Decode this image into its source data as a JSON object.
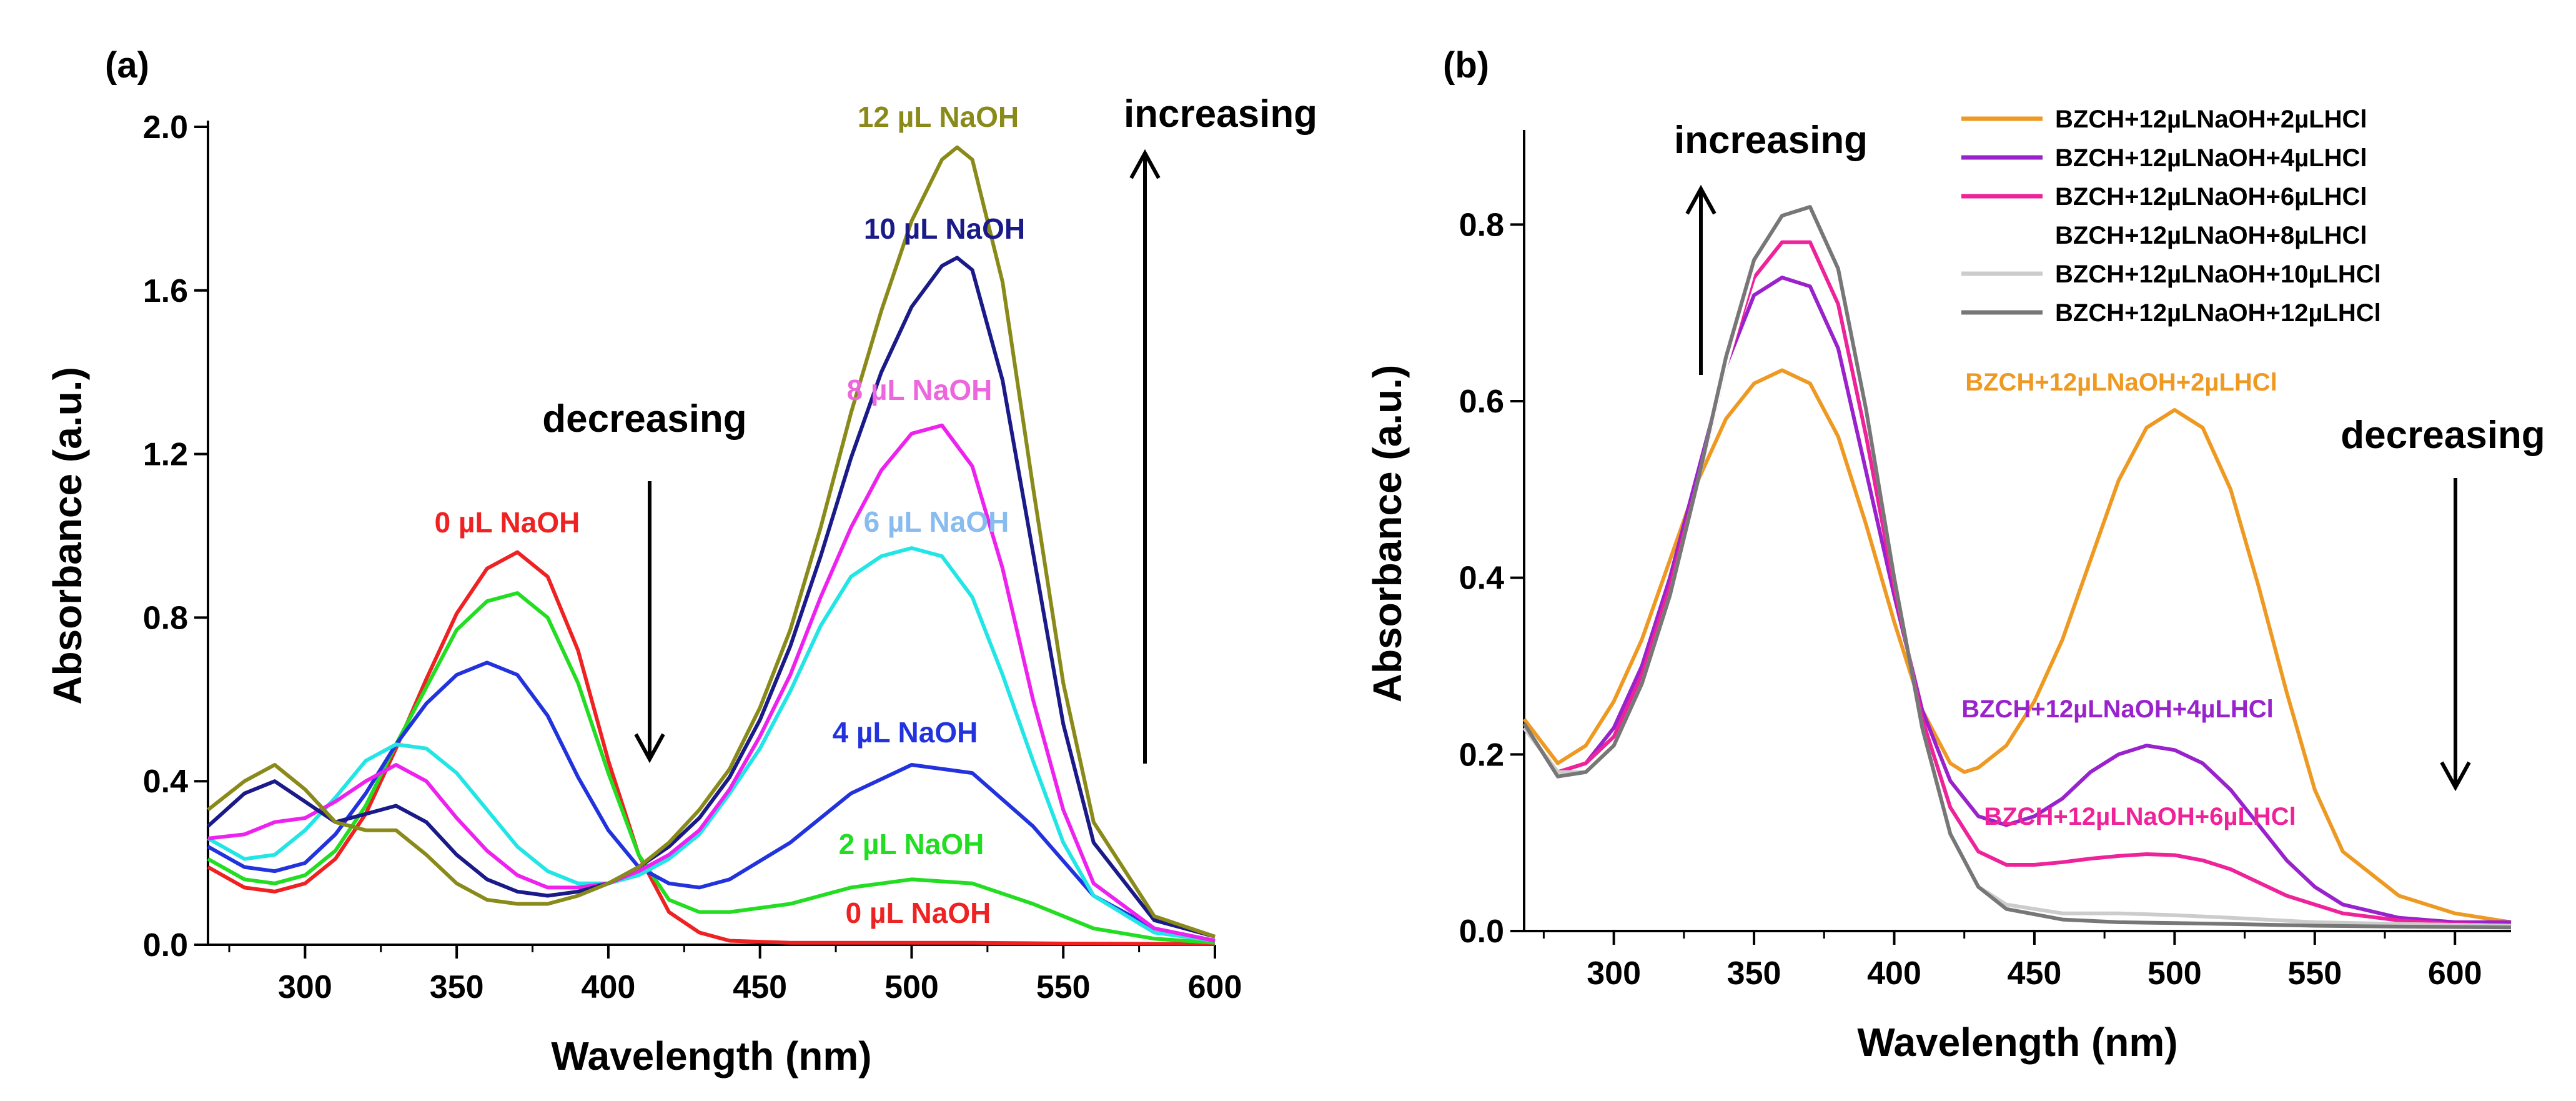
{
  "chart_data": [
    {
      "type": "line",
      "panel_label": "(a)",
      "xlabel": "Wavelength (nm)",
      "ylabel": "Absorbance (a.u.)",
      "xlim": [
        268,
        600
      ],
      "ylim": [
        0,
        2.0
      ],
      "xticks": [
        300,
        350,
        400,
        450,
        500,
        550,
        600
      ],
      "yticks": [
        0.0,
        0.4,
        0.8,
        1.2,
        1.6,
        2.0
      ],
      "ytick_labels": [
        "0.0",
        "0.4",
        "0.8",
        "1.2",
        "1.6",
        "2.0"
      ],
      "series": [
        {
          "name": "0 µL NaOH",
          "color": "#ee2222",
          "x": [
            268,
            280,
            290,
            300,
            310,
            320,
            330,
            340,
            350,
            360,
            370,
            380,
            390,
            400,
            410,
            420,
            430,
            440,
            460,
            480,
            500,
            520,
            550,
            600
          ],
          "y": [
            0.19,
            0.14,
            0.13,
            0.15,
            0.21,
            0.32,
            0.48,
            0.65,
            0.81,
            0.92,
            0.96,
            0.9,
            0.72,
            0.45,
            0.22,
            0.08,
            0.03,
            0.01,
            0.005,
            0.005,
            0.005,
            0.005,
            0.003,
            0.002
          ]
        },
        {
          "name": "2 µL NaOH",
          "color": "#22dd22",
          "x": [
            268,
            280,
            290,
            300,
            310,
            320,
            330,
            340,
            350,
            360,
            370,
            380,
            390,
            400,
            410,
            420,
            430,
            440,
            460,
            480,
            500,
            520,
            540,
            560,
            580,
            600
          ],
          "y": [
            0.21,
            0.16,
            0.15,
            0.17,
            0.23,
            0.34,
            0.49,
            0.63,
            0.77,
            0.84,
            0.86,
            0.8,
            0.64,
            0.42,
            0.22,
            0.11,
            0.08,
            0.08,
            0.1,
            0.14,
            0.16,
            0.15,
            0.1,
            0.04,
            0.015,
            0.005
          ]
        },
        {
          "name": "4 µL NaOH",
          "color": "#2233dd",
          "x": [
            268,
            280,
            290,
            300,
            310,
            320,
            330,
            340,
            350,
            360,
            370,
            380,
            390,
            400,
            410,
            420,
            430,
            440,
            460,
            480,
            500,
            520,
            540,
            560,
            580,
            600
          ],
          "y": [
            0.24,
            0.19,
            0.18,
            0.2,
            0.27,
            0.37,
            0.49,
            0.59,
            0.66,
            0.69,
            0.66,
            0.56,
            0.41,
            0.28,
            0.19,
            0.15,
            0.14,
            0.16,
            0.25,
            0.37,
            0.44,
            0.42,
            0.29,
            0.12,
            0.04,
            0.01
          ]
        },
        {
          "name": "6 µL NaOH",
          "color": "#22e5e5",
          "x": [
            268,
            280,
            290,
            300,
            310,
            320,
            330,
            340,
            350,
            360,
            370,
            380,
            390,
            400,
            410,
            420,
            430,
            440,
            450,
            460,
            470,
            480,
            490,
            500,
            510,
            520,
            530,
            540,
            550,
            560,
            580,
            600
          ],
          "y": [
            0.26,
            0.21,
            0.22,
            0.28,
            0.36,
            0.45,
            0.49,
            0.48,
            0.42,
            0.33,
            0.24,
            0.18,
            0.15,
            0.15,
            0.17,
            0.21,
            0.27,
            0.37,
            0.48,
            0.62,
            0.78,
            0.9,
            0.95,
            0.97,
            0.95,
            0.85,
            0.66,
            0.45,
            0.25,
            0.12,
            0.03,
            0.01
          ]
        },
        {
          "name": "8 µL NaOH",
          "color": "#ee22ee",
          "x": [
            268,
            280,
            290,
            300,
            310,
            320,
            330,
            340,
            350,
            360,
            370,
            380,
            390,
            400,
            410,
            420,
            430,
            440,
            450,
            460,
            470,
            480,
            490,
            500,
            510,
            520,
            530,
            540,
            550,
            560,
            580,
            600
          ],
          "y": [
            0.26,
            0.27,
            0.3,
            0.31,
            0.35,
            0.4,
            0.44,
            0.4,
            0.31,
            0.23,
            0.17,
            0.14,
            0.14,
            0.15,
            0.18,
            0.22,
            0.28,
            0.38,
            0.51,
            0.66,
            0.85,
            1.02,
            1.16,
            1.25,
            1.27,
            1.17,
            0.92,
            0.6,
            0.33,
            0.15,
            0.04,
            0.01
          ]
        },
        {
          "name": "10 µL NaOH",
          "color": "#1a1a88",
          "x": [
            268,
            280,
            290,
            300,
            310,
            320,
            330,
            340,
            350,
            360,
            370,
            380,
            390,
            400,
            410,
            420,
            430,
            440,
            450,
            460,
            470,
            480,
            490,
            500,
            510,
            515,
            520,
            530,
            540,
            550,
            560,
            580,
            600
          ],
          "y": [
            0.29,
            0.37,
            0.4,
            0.35,
            0.3,
            0.32,
            0.34,
            0.3,
            0.22,
            0.16,
            0.13,
            0.12,
            0.13,
            0.15,
            0.19,
            0.24,
            0.31,
            0.41,
            0.55,
            0.73,
            0.95,
            1.19,
            1.4,
            1.56,
            1.66,
            1.68,
            1.65,
            1.38,
            0.96,
            0.54,
            0.25,
            0.06,
            0.02
          ]
        },
        {
          "name": "12 µL NaOH",
          "color": "#8a8a1a",
          "x": [
            268,
            280,
            290,
            300,
            310,
            320,
            330,
            340,
            350,
            360,
            370,
            380,
            390,
            400,
            410,
            420,
            430,
            440,
            450,
            460,
            470,
            480,
            490,
            500,
            510,
            515,
            520,
            530,
            540,
            550,
            560,
            580,
            600
          ],
          "y": [
            0.33,
            0.4,
            0.44,
            0.38,
            0.3,
            0.28,
            0.28,
            0.22,
            0.15,
            0.11,
            0.1,
            0.1,
            0.12,
            0.15,
            0.19,
            0.25,
            0.33,
            0.43,
            0.58,
            0.77,
            1.02,
            1.3,
            1.55,
            1.77,
            1.92,
            1.95,
            1.92,
            1.62,
            1.12,
            0.64,
            0.3,
            0.07,
            0.02
          ]
        }
      ],
      "annotations": [
        {
          "text": "12 µL NaOH",
          "color": "#8a8a1a"
        },
        {
          "text": "10 µL NaOH",
          "color": "#1a1a88"
        },
        {
          "text": "8 µL NaOH",
          "color": "#ee66dd"
        },
        {
          "text": "6 µL NaOH",
          "color": "#88bbee"
        },
        {
          "text": "4 µL NaOH",
          "color": "#2233dd"
        },
        {
          "text": "2 µL NaOH",
          "color": "#22dd22"
        },
        {
          "text": "0 µL NaOH",
          "color": "#ee2222"
        },
        {
          "text": "0 µL NaOH",
          "color": "#ee2222"
        },
        {
          "text": "decreasing",
          "color": "#000000"
        },
        {
          "text": "increasing",
          "color": "#000000"
        }
      ]
    },
    {
      "type": "line",
      "panel_label": "(b)",
      "xlabel": "Wavelength (nm)",
      "ylabel": "Absorbance (a.u.)",
      "xlim": [
        268,
        620
      ],
      "ylim": [
        0,
        0.9
      ],
      "xticks": [
        300,
        350,
        400,
        450,
        500,
        550,
        600
      ],
      "yticks": [
        0.0,
        0.2,
        0.4,
        0.6,
        0.8
      ],
      "ytick_labels": [
        "0.0",
        "0.2",
        "0.4",
        "0.6",
        "0.8"
      ],
      "series": [
        {
          "name": "BZCH+12µLNaOH+2µLHCl",
          "color": "#ee9922",
          "x": [
            268,
            280,
            290,
            300,
            310,
            320,
            330,
            340,
            350,
            360,
            370,
            380,
            390,
            400,
            410,
            420,
            425,
            430,
            440,
            450,
            460,
            470,
            480,
            490,
            500,
            510,
            520,
            530,
            540,
            550,
            560,
            580,
            600,
            620
          ],
          "y": [
            0.24,
            0.19,
            0.21,
            0.26,
            0.33,
            0.42,
            0.51,
            0.58,
            0.62,
            0.635,
            0.62,
            0.56,
            0.46,
            0.35,
            0.25,
            0.19,
            0.18,
            0.185,
            0.21,
            0.26,
            0.33,
            0.42,
            0.51,
            0.57,
            0.59,
            0.57,
            0.5,
            0.39,
            0.27,
            0.16,
            0.09,
            0.04,
            0.02,
            0.01
          ]
        },
        {
          "name": "BZCH+12µLNaOH+4µLHCl",
          "color": "#9922cc",
          "x": [
            268,
            280,
            290,
            300,
            310,
            320,
            330,
            340,
            350,
            360,
            370,
            380,
            390,
            400,
            410,
            420,
            430,
            440,
            450,
            460,
            470,
            480,
            490,
            500,
            510,
            520,
            530,
            540,
            550,
            560,
            580,
            600,
            620
          ],
          "y": [
            0.23,
            0.18,
            0.19,
            0.23,
            0.3,
            0.4,
            0.52,
            0.64,
            0.72,
            0.74,
            0.73,
            0.66,
            0.52,
            0.38,
            0.25,
            0.17,
            0.13,
            0.12,
            0.13,
            0.15,
            0.18,
            0.2,
            0.21,
            0.205,
            0.19,
            0.16,
            0.12,
            0.08,
            0.05,
            0.03,
            0.015,
            0.01,
            0.01
          ]
        },
        {
          "name": "BZCH+12µLNaOH+6µLHCl",
          "color": "#ee2299",
          "x": [
            268,
            280,
            290,
            300,
            310,
            320,
            330,
            340,
            350,
            360,
            370,
            380,
            390,
            400,
            410,
            420,
            430,
            440,
            450,
            460,
            470,
            480,
            490,
            500,
            510,
            520,
            530,
            540,
            550,
            560,
            580,
            600,
            620
          ],
          "y": [
            0.23,
            0.18,
            0.19,
            0.22,
            0.29,
            0.39,
            0.51,
            0.64,
            0.74,
            0.78,
            0.78,
            0.71,
            0.56,
            0.39,
            0.24,
            0.14,
            0.09,
            0.075,
            0.075,
            0.078,
            0.082,
            0.085,
            0.087,
            0.086,
            0.08,
            0.07,
            0.055,
            0.04,
            0.03,
            0.02,
            0.012,
            0.008,
            0.006
          ]
        },
        {
          "name": "BZCH+12µLNaOH+8µLHCl",
          "color": "#ffffff",
          "x": [
            268,
            280,
            290,
            300,
            310,
            320,
            330,
            340,
            350,
            360,
            370,
            380,
            390,
            400,
            410,
            420,
            430,
            440,
            460,
            480,
            500,
            520,
            550,
            580,
            620
          ],
          "y": [
            0.23,
            0.18,
            0.18,
            0.21,
            0.28,
            0.38,
            0.51,
            0.64,
            0.75,
            0.8,
            0.81,
            0.74,
            0.59,
            0.4,
            0.23,
            0.11,
            0.05,
            0.03,
            0.02,
            0.02,
            0.018,
            0.015,
            0.01,
            0.008,
            0.006
          ]
        },
        {
          "name": "BZCH+12µLNaOH+10µLHCl",
          "color": "#cccccc",
          "x": [
            268,
            280,
            290,
            300,
            310,
            320,
            330,
            340,
            350,
            360,
            370,
            380,
            390,
            400,
            410,
            420,
            430,
            440,
            460,
            480,
            500,
            520,
            550,
            580,
            620
          ],
          "y": [
            0.23,
            0.18,
            0.18,
            0.21,
            0.28,
            0.38,
            0.51,
            0.65,
            0.76,
            0.81,
            0.82,
            0.75,
            0.59,
            0.4,
            0.23,
            0.11,
            0.05,
            0.03,
            0.02,
            0.02,
            0.018,
            0.015,
            0.01,
            0.008,
            0.006
          ]
        },
        {
          "name": "BZCH+12µLNaOH+12µLHCl",
          "color": "#777777",
          "x": [
            268,
            280,
            290,
            300,
            310,
            320,
            330,
            340,
            350,
            360,
            370,
            380,
            390,
            400,
            410,
            420,
            430,
            440,
            460,
            480,
            500,
            520,
            550,
            580,
            620
          ],
          "y": [
            0.235,
            0.175,
            0.18,
            0.21,
            0.28,
            0.38,
            0.51,
            0.65,
            0.76,
            0.81,
            0.82,
            0.75,
            0.59,
            0.4,
            0.23,
            0.11,
            0.05,
            0.025,
            0.013,
            0.01,
            0.009,
            0.008,
            0.006,
            0.005,
            0.004
          ]
        }
      ],
      "annotations": [
        {
          "text": "BZCH+12µLNaOH+2µLHCl",
          "color": "#ee9922"
        },
        {
          "text": "BZCH+12µLNaOH+4µLHCl",
          "color": "#9922cc"
        },
        {
          "text": "BZCH+12µLNaOH+6µLHCl",
          "color": "#ee2299"
        },
        {
          "text": "increasing",
          "color": "#000000"
        },
        {
          "text": "decreasing",
          "color": "#000000"
        }
      ]
    }
  ]
}
